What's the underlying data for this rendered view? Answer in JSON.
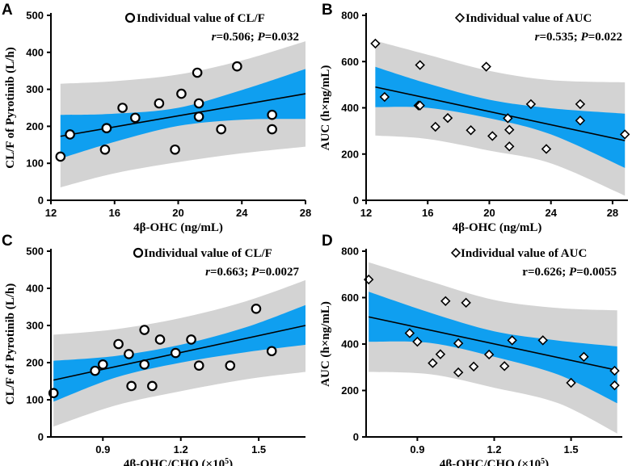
{
  "colors": {
    "prediction_band": "#d3d3d3",
    "confidence_band": "#0f9ff0",
    "line": "#000000"
  },
  "chart_data": [
    {
      "panel": "A",
      "type": "scatter",
      "marker": "circle",
      "xlabel": "4β-OHC (ng/mL)",
      "ylabel": "CL/F of Pyrotinib (L/h)",
      "xlim": [
        12,
        28
      ],
      "ylim": [
        0,
        500
      ],
      "xticks": [
        12,
        16,
        20,
        24,
        28
      ],
      "xtick_labels": [
        "12",
        "16",
        "20",
        "24",
        "28"
      ],
      "yticks": [
        0,
        100,
        200,
        300,
        400,
        500
      ],
      "ytick_labels": [
        "0",
        "100",
        "200",
        "300",
        "400",
        "500"
      ],
      "legend": "Individual value of CL/F",
      "stat_r_label": "r",
      "stat_r_value": "=0.506; ",
      "stat_p_label": "P",
      "stat_p_value": "=0.032",
      "x": [
        12.6,
        13.2,
        15.4,
        15.5,
        15.5,
        16.5,
        17.3,
        18.8,
        19.8,
        20.2,
        21.2,
        21.3,
        21.3,
        22.7,
        23.7,
        25.9,
        25.9
      ],
      "y": [
        118,
        178,
        137,
        195,
        195,
        250,
        223,
        262,
        137,
        288,
        345,
        262,
        226,
        192,
        362,
        231,
        192
      ],
      "fit": {
        "x": [
          12.6,
          28.0
        ],
        "y": [
          173,
          288
        ]
      },
      "confidence_upper": [
        [
          12.6,
          231
        ],
        [
          16,
          234
        ],
        [
          20,
          250
        ],
        [
          24,
          298
        ],
        [
          28,
          355
        ]
      ],
      "confidence_lower": [
        [
          12.6,
          113
        ],
        [
          16,
          158
        ],
        [
          20,
          201
        ],
        [
          24,
          218
        ],
        [
          28,
          220
        ]
      ],
      "prediction_upper": [
        [
          12.6,
          315
        ],
        [
          16,
          322
        ],
        [
          20,
          340
        ],
        [
          24,
          378
        ],
        [
          28,
          430
        ]
      ],
      "prediction_lower": [
        [
          12.6,
          35
        ],
        [
          16,
          73
        ],
        [
          20,
          103
        ],
        [
          24,
          127
        ],
        [
          28,
          145
        ]
      ]
    },
    {
      "panel": "B",
      "type": "scatter",
      "marker": "diamond",
      "xlabel": "4β-OHC (ng/mL)",
      "ylabel": "AUC (h×ng/mL)",
      "xlim": [
        12,
        29
      ],
      "ylim": [
        0,
        800
      ],
      "xticks": [
        12,
        16,
        20,
        24,
        28
      ],
      "xtick_labels": [
        "12",
        "16",
        "20",
        "24",
        "28"
      ],
      "yticks": [
        0,
        200,
        400,
        600,
        800
      ],
      "ytick_labels": [
        "0",
        "200",
        "400",
        "600",
        "800"
      ],
      "legend": "Individual value of AUC",
      "stat_r_label": "r",
      "stat_r_value": "=0.535; ",
      "stat_p_label": "P",
      "stat_p_value": "=0.022",
      "x": [
        12.6,
        13.2,
        15.4,
        15.5,
        15.5,
        16.5,
        17.3,
        18.8,
        19.8,
        20.2,
        21.2,
        21.3,
        21.3,
        22.7,
        23.7,
        25.9,
        25.9,
        28.8
      ],
      "y": [
        678,
        447,
        410,
        410,
        585,
        318,
        356,
        303,
        578,
        278,
        355,
        305,
        233,
        416,
        222,
        416,
        345,
        285
      ],
      "fit": {
        "x": [
          12.6,
          28.8
        ],
        "y": [
          490,
          258
        ]
      },
      "confidence_upper": [
        [
          12.6,
          577
        ],
        [
          16,
          505
        ],
        [
          20,
          435
        ],
        [
          24,
          398
        ],
        [
          28.8,
          375
        ]
      ],
      "confidence_lower": [
        [
          12.6,
          403
        ],
        [
          16,
          400
        ],
        [
          20,
          355
        ],
        [
          24,
          285
        ],
        [
          28.8,
          140
        ]
      ],
      "prediction_upper": [
        [
          12.6,
          690
        ],
        [
          16,
          630
        ],
        [
          20,
          560
        ],
        [
          24,
          520
        ],
        [
          28.8,
          510
        ]
      ],
      "prediction_lower": [
        [
          12.6,
          280
        ],
        [
          16,
          265
        ],
        [
          20,
          215
        ],
        [
          24,
          160
        ],
        [
          28.8,
          20
        ]
      ]
    },
    {
      "panel": "C",
      "type": "scatter",
      "marker": "circle",
      "xlabel_main": "4β-OHC/CHO (×10",
      "xlabel_exp": "5",
      "xlabel_close": ")",
      "ylabel": "CL/F of Pyrotinib (L/h)",
      "xlim": [
        0.7,
        1.68
      ],
      "ylim": [
        0,
        500
      ],
      "xticks": [
        0.9,
        1.2,
        1.5
      ],
      "xtick_labels": [
        "0.9",
        "1.2",
        "1.5"
      ],
      "yticks": [
        0,
        100,
        200,
        300,
        400,
        500
      ],
      "ytick_labels": [
        "0",
        "100",
        "200",
        "300",
        "400",
        "500"
      ],
      "legend": "Individual value of CL/F",
      "stat_r_label": "r",
      "stat_r_value": "=0.663; ",
      "stat_p_label": "P",
      "stat_p_value": "=0.0027",
      "x": [
        0.71,
        0.87,
        0.9,
        0.96,
        1.0,
        1.01,
        1.06,
        1.06,
        1.09,
        1.12,
        1.18,
        1.24,
        1.27,
        1.39,
        1.49,
        1.55
      ],
      "y": [
        118,
        178,
        195,
        250,
        223,
        137,
        288,
        195,
        137,
        262,
        226,
        262,
        192,
        192,
        345,
        231
      ],
      "fit": {
        "x": [
          0.71,
          1.68
        ],
        "y": [
          153,
          300
        ]
      },
      "confidence_upper": [
        [
          0.71,
          205
        ],
        [
          0.95,
          218
        ],
        [
          1.2,
          248
        ],
        [
          1.45,
          295
        ],
        [
          1.68,
          355
        ]
      ],
      "confidence_lower": [
        [
          0.71,
          95
        ],
        [
          0.95,
          160
        ],
        [
          1.2,
          200
        ],
        [
          1.45,
          228
        ],
        [
          1.68,
          248
        ]
      ],
      "prediction_upper": [
        [
          0.71,
          275
        ],
        [
          0.95,
          290
        ],
        [
          1.2,
          320
        ],
        [
          1.45,
          365
        ],
        [
          1.68,
          422
        ]
      ],
      "prediction_lower": [
        [
          0.71,
          28
        ],
        [
          0.95,
          85
        ],
        [
          1.2,
          123
        ],
        [
          1.45,
          155
        ],
        [
          1.68,
          175
        ]
      ]
    },
    {
      "panel": "D",
      "type": "scatter",
      "marker": "diamond",
      "xlabel_main": "4β-OHC/CHO (×10",
      "xlabel_exp": "5",
      "xlabel_close": ")",
      "ylabel": "AUC (h×ng/mL)",
      "xlim": [
        0.7,
        1.7
      ],
      "ylim": [
        0,
        800
      ],
      "xticks": [
        0.9,
        1.2,
        1.5
      ],
      "xtick_labels": [
        "0.9",
        "1.2",
        "1.5"
      ],
      "yticks": [
        0,
        200,
        400,
        600,
        800
      ],
      "ytick_labels": [
        "0",
        "200",
        "400",
        "600",
        "800"
      ],
      "legend": "Individual value of AUC",
      "stat_r_label": "r",
      "stat_r_value": "=0.626; ",
      "stat_p_label": "P",
      "stat_p_value": "=0.0055",
      "x": [
        0.71,
        0.87,
        0.9,
        0.96,
        0.99,
        1.01,
        1.06,
        1.06,
        1.09,
        1.12,
        1.18,
        1.24,
        1.27,
        1.39,
        1.5,
        1.55,
        1.67,
        1.67
      ],
      "y": [
        678,
        447,
        410,
        318,
        356,
        585,
        278,
        403,
        578,
        303,
        355,
        305,
        416,
        416,
        233,
        345,
        285,
        222
      ],
      "fit": {
        "x": [
          0.71,
          1.68
        ],
        "y": [
          517,
          287
        ]
      },
      "confidence_upper": [
        [
          0.71,
          625
        ],
        [
          0.95,
          535
        ],
        [
          1.2,
          455
        ],
        [
          1.45,
          415
        ],
        [
          1.68,
          390
        ]
      ],
      "confidence_lower": [
        [
          0.71,
          410
        ],
        [
          0.95,
          405
        ],
        [
          1.2,
          345
        ],
        [
          1.45,
          268
        ],
        [
          1.68,
          145
        ]
      ],
      "prediction_upper": [
        [
          0.71,
          752
        ],
        [
          0.95,
          670
        ],
        [
          1.2,
          590
        ],
        [
          1.45,
          555
        ],
        [
          1.68,
          545
        ]
      ],
      "prediction_lower": [
        [
          0.71,
          280
        ],
        [
          0.95,
          270
        ],
        [
          1.2,
          212
        ],
        [
          1.45,
          145
        ],
        [
          1.68,
          15
        ]
      ]
    }
  ]
}
